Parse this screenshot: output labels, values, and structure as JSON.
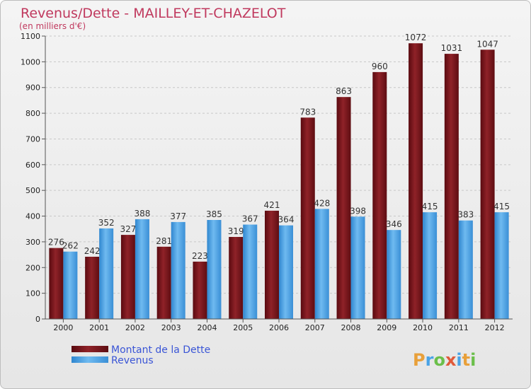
{
  "chart_data": {
    "type": "bar",
    "title": "Revenus/Dette - MAILLEY-ET-CHAZELOT",
    "subtitle": "(en milliers d'€)",
    "categories": [
      "2000",
      "2001",
      "2002",
      "2003",
      "2004",
      "2005",
      "2006",
      "2007",
      "2008",
      "2009",
      "2010",
      "2011",
      "2012"
    ],
    "series": [
      {
        "name": "Montant de la Dette",
        "values": [
          276,
          242,
          327,
          281,
          223,
          319,
          421,
          783,
          863,
          960,
          1072,
          1031,
          1047
        ],
        "color": "#7a1218"
      },
      {
        "name": "Revenus",
        "values": [
          262,
          352,
          388,
          377,
          385,
          367,
          364,
          428,
          398,
          346,
          415,
          383,
          415
        ],
        "color": "#4aa3e6"
      }
    ],
    "ylim": [
      0,
      1100
    ],
    "yticks": [
      0,
      100,
      200,
      300,
      400,
      500,
      600,
      700,
      800,
      900,
      1000,
      1100
    ],
    "grid": true,
    "legend_position": "bottom-left"
  },
  "logo": {
    "text": "Proxiti"
  }
}
